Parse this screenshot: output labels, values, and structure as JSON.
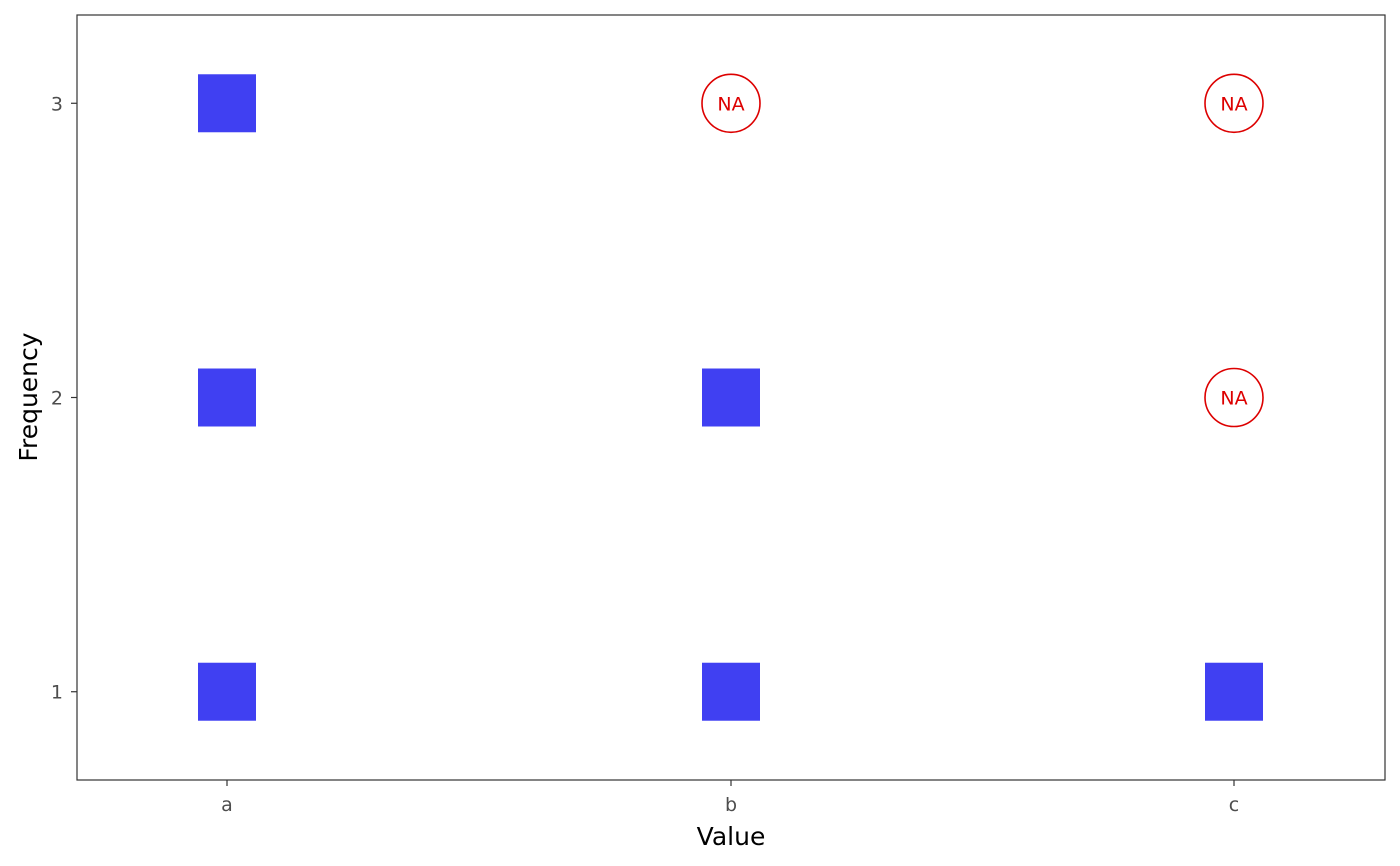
{
  "chart_data": {
    "type": "scatter",
    "title": "",
    "xlabel": "Value",
    "ylabel": "Frequency",
    "x_categories": [
      "a",
      "b",
      "c"
    ],
    "y_ticks": [
      1,
      2,
      3
    ],
    "ylim": [
      0.7,
      3.3
    ],
    "grid": false,
    "legend": "none",
    "points": [
      {
        "x": "a",
        "y": 1,
        "missing": false
      },
      {
        "x": "a",
        "y": 2,
        "missing": false
      },
      {
        "x": "a",
        "y": 3,
        "missing": false
      },
      {
        "x": "b",
        "y": 1,
        "missing": false
      },
      {
        "x": "b",
        "y": 2,
        "missing": false
      },
      {
        "x": "b",
        "y": 3,
        "missing": true,
        "label": "NA"
      },
      {
        "x": "c",
        "y": 1,
        "missing": false
      },
      {
        "x": "c",
        "y": 2,
        "missing": true,
        "label": "NA"
      },
      {
        "x": "c",
        "y": 3,
        "missing": true,
        "label": "NA"
      }
    ],
    "colors": {
      "present": "#4040f2",
      "missing": "#dd0000",
      "panel_border": "#333333",
      "tick": "#333333"
    }
  }
}
